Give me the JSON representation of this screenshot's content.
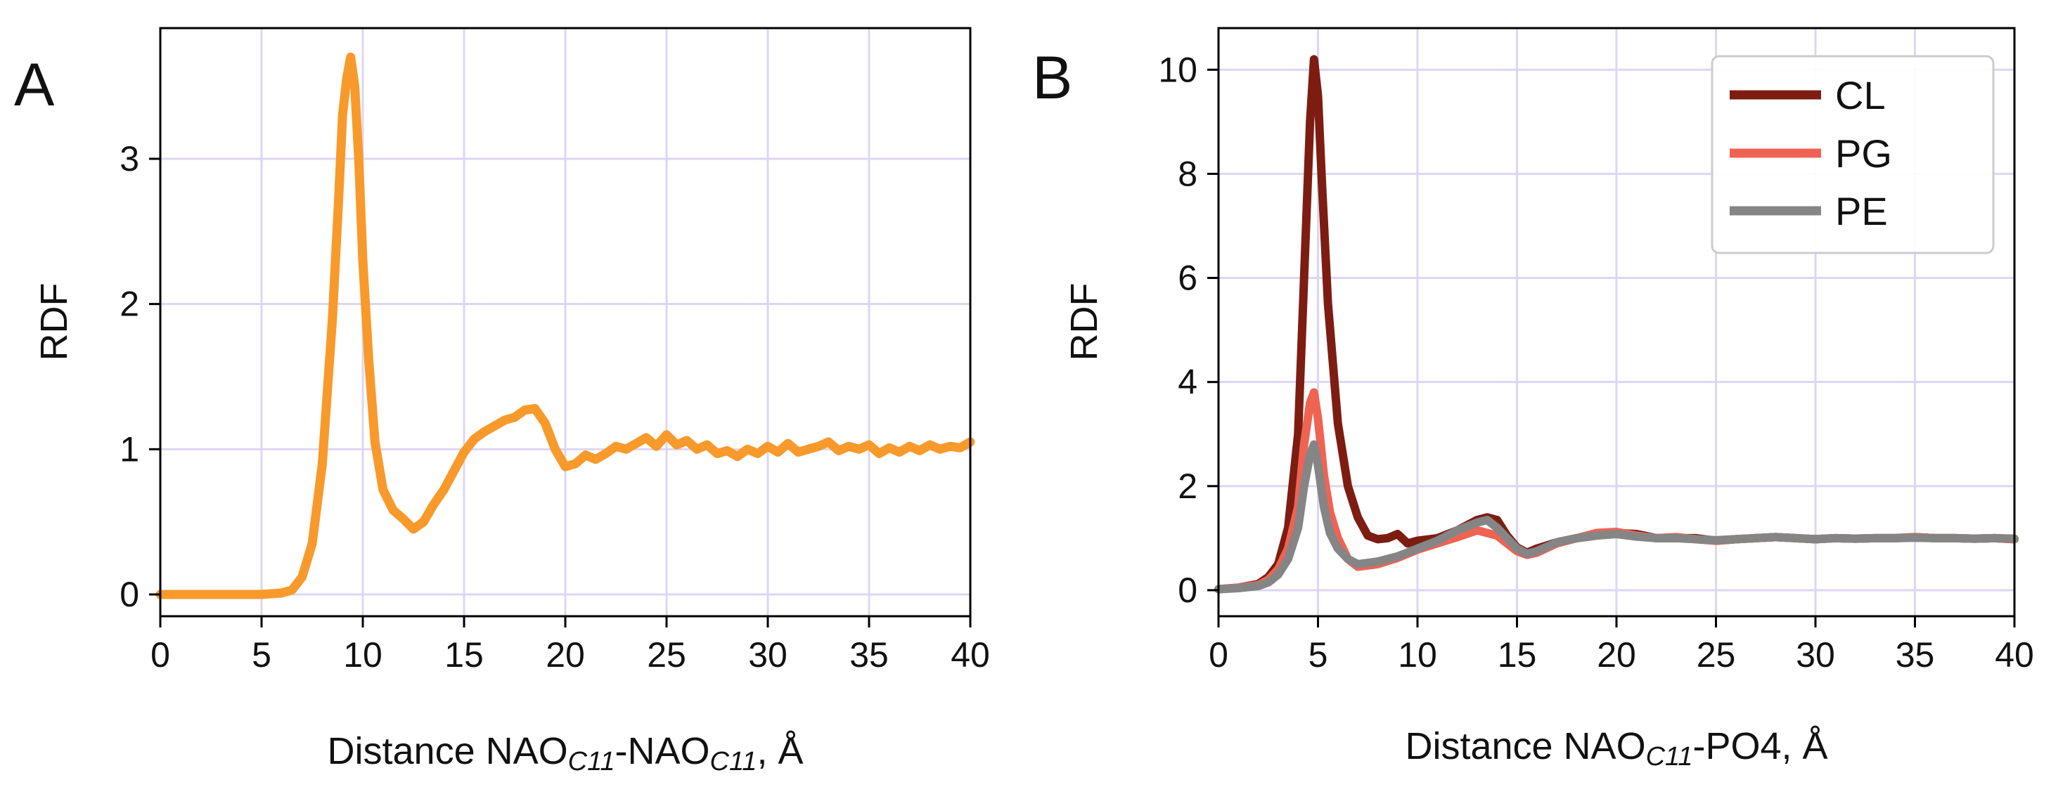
{
  "chart_data": [
    {
      "type": "line",
      "panel": "A",
      "title": "",
      "xlabel": {
        "prefix": "Distance NAO",
        "sub1": "C11",
        "mid": "-NAO",
        "sub2": "C11",
        "suffix": ", Å"
      },
      "ylabel": "RDF",
      "xlim": [
        0,
        40
      ],
      "ylim": [
        -0.15,
        3.9
      ],
      "xticks": [
        0,
        5,
        10,
        15,
        20,
        25,
        30,
        35,
        40
      ],
      "yticks": [
        0,
        1,
        2,
        3
      ],
      "grid": true,
      "series": [
        {
          "name": "NAO-NAO",
          "color": "#f89a2b",
          "x": [
            0,
            2,
            4,
            5,
            6,
            6.5,
            7,
            7.5,
            8,
            8.5,
            8.8,
            9,
            9.2,
            9.4,
            9.6,
            9.8,
            10,
            10.3,
            10.6,
            11,
            11.5,
            12,
            12.5,
            13,
            13.5,
            14,
            14.5,
            15,
            15.5,
            16,
            16.5,
            17,
            17.5,
            18,
            18.5,
            19,
            19.5,
            20,
            20.5,
            21,
            21.5,
            22,
            22.5,
            23,
            23.5,
            24,
            24.5,
            25,
            25.5,
            26,
            26.5,
            27,
            27.5,
            28,
            28.5,
            29,
            29.5,
            30,
            30.5,
            31,
            31.5,
            32,
            32.5,
            33,
            33.5,
            34,
            34.5,
            35,
            35.5,
            36,
            36.5,
            37,
            37.5,
            38,
            38.5,
            39,
            39.5,
            40
          ],
          "y": [
            0,
            0,
            0,
            0,
            0.01,
            0.03,
            0.12,
            0.35,
            0.9,
            1.9,
            2.7,
            3.3,
            3.55,
            3.7,
            3.5,
            3.0,
            2.3,
            1.6,
            1.05,
            0.72,
            0.58,
            0.52,
            0.45,
            0.5,
            0.62,
            0.72,
            0.85,
            0.98,
            1.07,
            1.12,
            1.16,
            1.2,
            1.22,
            1.27,
            1.28,
            1.18,
            1.0,
            0.88,
            0.9,
            0.96,
            0.93,
            0.97,
            1.02,
            1.0,
            1.04,
            1.08,
            1.02,
            1.1,
            1.03,
            1.06,
            1.0,
            1.03,
            0.97,
            0.99,
            0.95,
            1.0,
            0.97,
            1.02,
            0.98,
            1.04,
            0.98,
            1.0,
            1.02,
            1.05,
            0.99,
            1.02,
            1.0,
            1.03,
            0.97,
            1.01,
            0.98,
            1.02,
            0.99,
            1.03,
            1.0,
            1.02,
            1.01,
            1.05
          ]
        }
      ]
    },
    {
      "type": "line",
      "panel": "B",
      "title": "",
      "xlabel": {
        "prefix": "Distance NAO",
        "sub1": "C11",
        "mid": "-PO4, Å"
      },
      "ylabel": "RDF",
      "xlim": [
        0,
        40
      ],
      "ylim": [
        -0.5,
        10.8
      ],
      "xticks": [
        0,
        5,
        10,
        15,
        20,
        25,
        30,
        35,
        40
      ],
      "yticks": [
        0,
        2,
        4,
        6,
        8,
        10
      ],
      "grid": true,
      "legend": "top-right",
      "series": [
        {
          "name": "CL",
          "color": "#7d1d12",
          "x": [
            0,
            1,
            2,
            2.5,
            3,
            3.5,
            4,
            4.3,
            4.6,
            4.8,
            5.0,
            5.2,
            5.5,
            6,
            6.5,
            7,
            7.5,
            8,
            8.5,
            9,
            9.5,
            10,
            11,
            12,
            13,
            13.5,
            14,
            14.5,
            15,
            15.5,
            16,
            17,
            18,
            19,
            20,
            21,
            22,
            23,
            24,
            25,
            26,
            27,
            28,
            29,
            30,
            31,
            32,
            33,
            34,
            35,
            36,
            37,
            38,
            39,
            40
          ],
          "y": [
            0.02,
            0.05,
            0.12,
            0.25,
            0.5,
            1.2,
            3.0,
            6.0,
            9.0,
            10.2,
            9.5,
            7.8,
            5.5,
            3.2,
            2.0,
            1.4,
            1.05,
            0.98,
            1.0,
            1.08,
            0.9,
            0.95,
            1.0,
            1.15,
            1.35,
            1.4,
            1.35,
            1.05,
            0.82,
            0.72,
            0.8,
            0.92,
            1.0,
            1.05,
            1.1,
            1.08,
            1.0,
            1.0,
            1.0,
            0.95,
            0.98,
            1.0,
            1.02,
            1.0,
            0.98,
            1.0,
            0.99,
            1.0,
            1.0,
            1.02,
            1.0,
            1.0,
            0.99,
            1.0,
            0.98
          ]
        },
        {
          "name": "PG",
          "color": "#ef6353",
          "x": [
            0,
            1,
            2,
            2.5,
            3,
            3.5,
            4,
            4.3,
            4.6,
            4.8,
            5.0,
            5.3,
            5.6,
            6,
            6.5,
            7,
            8,
            9,
            10,
            11,
            12,
            13,
            14,
            14.5,
            15,
            15.5,
            16,
            17,
            18,
            19,
            20,
            21,
            22,
            23,
            24,
            25,
            26,
            27,
            28,
            29,
            30,
            31,
            32,
            33,
            34,
            35,
            36,
            37,
            38,
            39,
            40
          ],
          "y": [
            0.02,
            0.05,
            0.1,
            0.2,
            0.4,
            0.8,
            1.6,
            2.8,
            3.6,
            3.8,
            3.3,
            2.2,
            1.5,
            1.0,
            0.6,
            0.45,
            0.5,
            0.62,
            0.78,
            0.9,
            1.02,
            1.15,
            1.05,
            0.9,
            0.75,
            0.68,
            0.72,
            0.9,
            1.0,
            1.1,
            1.12,
            1.05,
            1.0,
            1.02,
            0.98,
            0.95,
            0.98,
            1.0,
            1.02,
            1.0,
            0.98,
            1.0,
            0.99,
            1.0,
            1.0,
            1.02,
            1.0,
            1.0,
            0.99,
            1.0,
            0.98
          ]
        },
        {
          "name": "PE",
          "color": "#858585",
          "x": [
            0,
            1,
            2,
            2.5,
            3,
            3.5,
            4,
            4.3,
            4.6,
            4.8,
            5.0,
            5.3,
            5.6,
            6,
            6.5,
            7,
            8,
            9,
            10,
            11,
            12,
            13,
            13.5,
            14,
            14.5,
            15,
            15.5,
            16,
            17,
            18,
            19,
            20,
            21,
            22,
            23,
            24,
            25,
            26,
            27,
            28,
            29,
            30,
            31,
            32,
            33,
            34,
            35,
            36,
            37,
            38,
            39,
            40
          ],
          "y": [
            0.02,
            0.04,
            0.08,
            0.15,
            0.3,
            0.6,
            1.2,
            2.0,
            2.6,
            2.8,
            2.4,
            1.6,
            1.1,
            0.8,
            0.6,
            0.5,
            0.55,
            0.65,
            0.8,
            0.95,
            1.15,
            1.3,
            1.35,
            1.2,
            1.0,
            0.8,
            0.7,
            0.75,
            0.92,
            1.0,
            1.05,
            1.08,
            1.03,
            1.0,
            1.0,
            0.98,
            0.96,
            0.98,
            1.0,
            1.02,
            1.0,
            0.98,
            1.0,
            0.99,
            1.0,
            1.0,
            1.01,
            1.0,
            1.0,
            0.99,
            1.0,
            0.99
          ]
        }
      ]
    }
  ]
}
